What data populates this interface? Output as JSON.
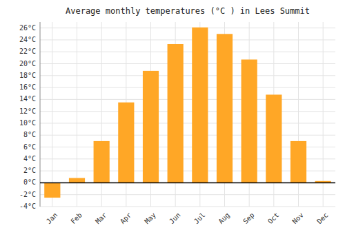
{
  "chart_data": {
    "type": "bar",
    "title": "Average monthly temperatures (°C ) in Lees Summit",
    "categories": [
      "Jan",
      "Feb",
      "Mar",
      "Apr",
      "May",
      "Jun",
      "Jul",
      "Aug",
      "Sep",
      "Oct",
      "Nov",
      "Dec"
    ],
    "values": [
      -2.5,
      0.8,
      7.0,
      13.5,
      18.8,
      23.3,
      26.1,
      25.0,
      20.7,
      14.8,
      7.0,
      0.3
    ],
    "color": "#FFA726",
    "ylim": [
      -4,
      27
    ],
    "yticks": [
      {
        "value": -4,
        "label": "-4°C"
      },
      {
        "value": -2,
        "label": "-2°C"
      },
      {
        "value": 0,
        "label": "0°C"
      },
      {
        "value": 2,
        "label": "2°C"
      },
      {
        "value": 4,
        "label": "4°C"
      },
      {
        "value": 6,
        "label": "6°C"
      },
      {
        "value": 8,
        "label": "8°C"
      },
      {
        "value": 10,
        "label": "10°C"
      },
      {
        "value": 12,
        "label": "12°C"
      },
      {
        "value": 14,
        "label": "14°C"
      },
      {
        "value": 16,
        "label": "16°C"
      },
      {
        "value": 18,
        "label": "18°C"
      },
      {
        "value": 20,
        "label": "20°C"
      },
      {
        "value": 22,
        "label": "22°C"
      },
      {
        "value": 24,
        "label": "24°C"
      },
      {
        "value": 26,
        "label": "26°C"
      }
    ],
    "grid": true
  }
}
